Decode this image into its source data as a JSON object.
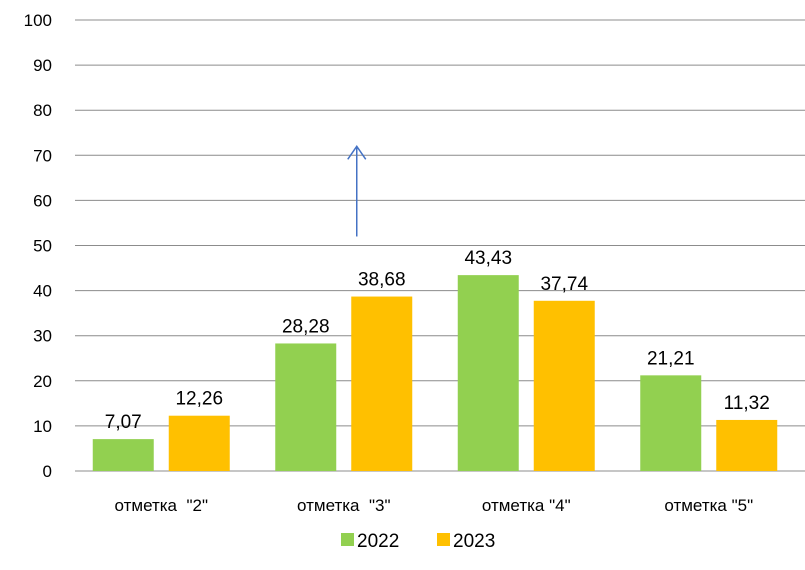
{
  "chart_data": {
    "type": "bar",
    "categories": [
      "отметка  \"2\"",
      "отметка  \"3\"",
      "отметка \"4\"",
      "отметка \"5\""
    ],
    "series": [
      {
        "name": "2022",
        "color": "#92D050",
        "values": [
          7.07,
          28.28,
          43.43,
          21.21
        ],
        "labels": [
          "7,07",
          "28,28",
          "43,43",
          "21,21"
        ]
      },
      {
        "name": "2023",
        "color": "#FFC000",
        "values": [
          12.26,
          38.68,
          37.74,
          11.32
        ],
        "labels": [
          "12,26",
          "38,68",
          "37,74",
          "11,32"
        ]
      }
    ],
    "ylim": [
      0,
      100
    ],
    "yticks": [
      0,
      10,
      20,
      30,
      40,
      50,
      60,
      70,
      80,
      90,
      100
    ],
    "grid": true,
    "legend": "bottom",
    "annotation": {
      "type": "arrow",
      "color": "#4472C4",
      "at_category": 1,
      "from_value": 52,
      "to_value": 72
    }
  }
}
